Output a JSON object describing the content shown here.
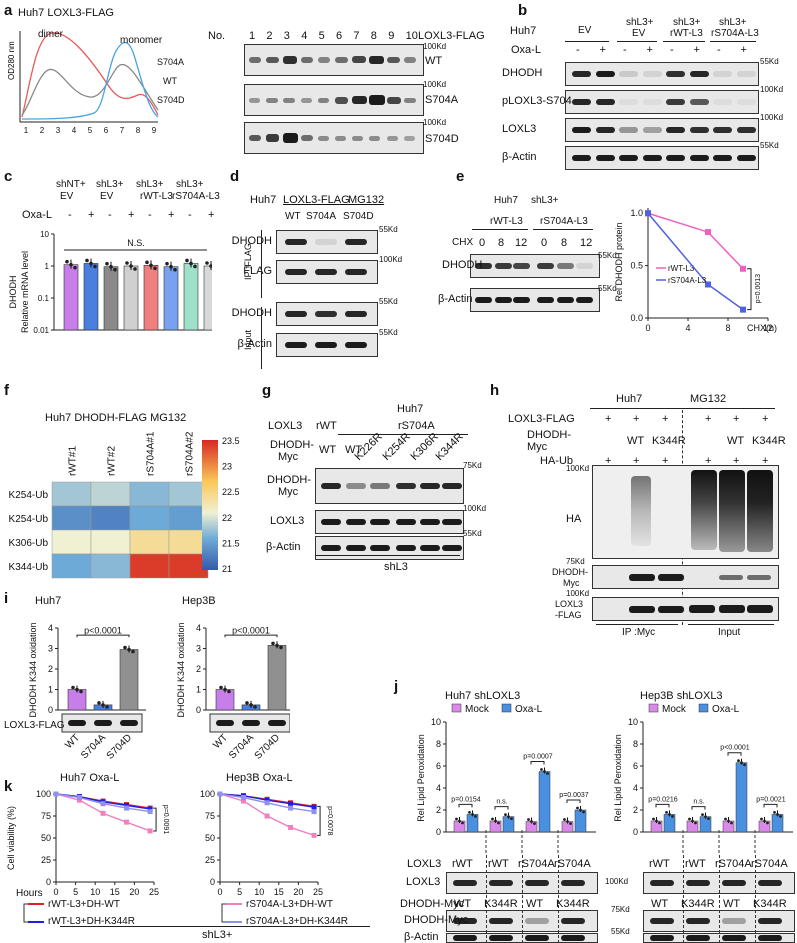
{
  "panel_labels": {
    "a": "a",
    "b": "b",
    "c": "c",
    "d": "d",
    "e": "e",
    "f": "f",
    "g": "g",
    "h": "h",
    "i": "i",
    "j": "j",
    "k": "k"
  },
  "a": {
    "title": "Huh7 LOXL3-FLAG",
    "dimer": "dimer",
    "monomer": "monomer",
    "ylabel": "OD280 nm",
    "series": [
      "S704A",
      "WT",
      "S704D"
    ],
    "colors": {
      "S704A": "#4aa3e0",
      "WT": "#8a8a8a",
      "S704D": "#e85a5a"
    },
    "xticks": [
      "1",
      "2",
      "3",
      "4",
      "5",
      "6",
      "7",
      "8",
      "9"
    ],
    "gel_no": "No.",
    "fractions": [
      "1",
      "2",
      "3",
      "4",
      "5",
      "6",
      "7",
      "8",
      "9",
      "10"
    ],
    "gel_header": "LOXL3-FLAG",
    "rows": [
      {
        "label": "WT",
        "kd": "100Kd"
      },
      {
        "label": "S704A",
        "kd": "100Kd"
      },
      {
        "label": "S704D",
        "kd": "100Kd"
      }
    ]
  },
  "b": {
    "huh7": "Huh7",
    "groups": [
      "EV",
      "shL3+\nEV",
      "shL3+\nrWT-L3",
      "shL3+\nrS704A-L3"
    ],
    "g1": "EV",
    "g2a": "shL3+",
    "g2b": "EV",
    "g3a": "shL3+",
    "g3b": "rWT-L3",
    "g4a": "shL3+",
    "g4b": "rS704A-L3",
    "oxa": "Oxa-L",
    "minus": "-",
    "plus": "+",
    "rows": [
      "DHODH",
      "pLOXL3-S704",
      "LOXL3",
      "β-Actin"
    ],
    "kds": [
      "55Kd",
      "100Kd",
      "100Kd",
      "55Kd"
    ]
  },
  "c": {
    "groups": [
      [
        "shNT+",
        "EV"
      ],
      [
        "shL3+",
        "EV"
      ],
      [
        "shL3+",
        "rWT-L3"
      ],
      [
        "shL3+",
        "rS704A-L3"
      ]
    ],
    "oxa": "Oxa-L",
    "minus": "-",
    "plus": "+",
    "ylabel1": "DHODH",
    "ylabel2": "Relative mRNA level",
    "ns": "N.S.",
    "yticks": [
      "0.01",
      "0.1",
      "1",
      "10"
    ],
    "chart_data": {
      "type": "bar",
      "categories": [
        "shNT+EV -",
        "shNT+EV +",
        "shL3+EV -",
        "shL3+EV +",
        "shL3+rWT-L3 -",
        "shL3+rWT-L3 +",
        "shL3+rS704A-L3 -",
        "shL3+rS704A-L3 +"
      ],
      "values": [
        1.1,
        1.2,
        0.95,
        1.0,
        1.05,
        0.95,
        1.2,
        1.0
      ],
      "ylim": [
        0.01,
        10
      ],
      "log": true,
      "colors": [
        "#c77ee8",
        "#4a7fe0",
        "#8a8a8a",
        "#d0d0d0",
        "#f08080",
        "#7aa0f0",
        "#9ee0c8",
        "#d8d8d8"
      ]
    }
  },
  "d": {
    "title1": "Huh7",
    "title2": "LOXL3-FLAG",
    "title3": "MG132",
    "lanes": [
      "WT",
      "S704A",
      "S704D"
    ],
    "ip": "IP :FLAG",
    "input": "Input",
    "rows": [
      "DHODH",
      "FLAG",
      "DHODH",
      "β-Actin"
    ],
    "kds": [
      "55Kd",
      "100Kd",
      "55Kd",
      "55Kd"
    ]
  },
  "e": {
    "huh7": "Huh7",
    "shl3": "shL3+",
    "g1": "rWT-L3",
    "g2": "rS704A-L3",
    "chx": "CHX",
    "times": [
      "0",
      "8",
      "12",
      "0",
      "8",
      "12"
    ],
    "rows": [
      "DHODH",
      "β-Actin"
    ],
    "kds": [
      "55Kd",
      "55Kd"
    ],
    "ylabel": "Rel DHODH protein",
    "xlabel": "CHX(h)",
    "pval": "p=0.0013",
    "yticks": [
      "0.0",
      "0.5",
      "1.0"
    ],
    "xticks": [
      "0",
      "4",
      "8",
      "12"
    ],
    "chart_data": {
      "type": "line",
      "x": [
        0,
        6,
        9.5
      ],
      "series": [
        {
          "name": "rWT-L3",
          "values": [
            1.0,
            0.82,
            0.47
          ],
          "color": "#f060c0"
        },
        {
          "name": "rS704A-L3",
          "values": [
            1.0,
            0.32,
            0.08
          ],
          "color": "#5060e0"
        }
      ],
      "xlim": [
        0,
        12
      ],
      "ylim": [
        0,
        1.05
      ]
    }
  },
  "f": {
    "title": "Huh7 DHODH-FLAG MG132",
    "cols": [
      "rWT#1",
      "rWT#2",
      "rS704A#1",
      "rS704A#2"
    ],
    "rows": [
      "K254-Ub",
      "K254-Ub",
      "K306-Ub",
      "K344-Ub"
    ],
    "scale": [
      "23.5",
      "23",
      "22.5",
      "22",
      "21.5",
      "21"
    ],
    "chart_data": {
      "type": "heatmap",
      "values": [
        [
          21.8,
          21.9,
          21.7,
          21.8
        ],
        [
          21.4,
          21.3,
          21.6,
          21.5
        ],
        [
          22.1,
          22.1,
          22.4,
          22.4
        ],
        [
          21.6,
          21.7,
          23.4,
          23.4
        ]
      ],
      "range": [
        21,
        23.5
      ]
    }
  },
  "g": {
    "huh7": "Huh7",
    "loxl3": "LOXL3",
    "rwt": "rWT",
    "rs704a": "rS704A",
    "dhodh_myc": "DHODH-\nMyc",
    "dm1": "DHODH-",
    "dm2": "Myc",
    "lanes": [
      "WT",
      "WT",
      "K226R",
      "K254R",
      "K306R",
      "K344R"
    ],
    "rows": [
      "DHODH-\nMyc",
      "LOXL3",
      "β-Actin"
    ],
    "kds": [
      "75Kd",
      "100Kd",
      "55Kd"
    ],
    "shl3": "shL3"
  },
  "h": {
    "huh7": "Huh7",
    "mg132": "MG132",
    "r1": "LOXL3-FLAG",
    "r2a": "DHODH-",
    "r2b": "Myc",
    "r3": "HA-Ub",
    "plus": "+",
    "wt": "WT",
    "k344r": "K344R",
    "kd1": "100Kd",
    "kd2": "75Kd",
    "kd3": "100Kd",
    "ha": "HA",
    "dm1": "DHODH-",
    "dm2": "Myc",
    "lx1": "LOXL3",
    "lx2": "-FLAG",
    "ip": "IP :Myc",
    "input": "Input"
  },
  "i": {
    "cell1": "Huh7",
    "cell2": "Hep3B",
    "ylabel": "DHODH K344 oxidation",
    "pval": "p<0.0001",
    "lanes": [
      "WT",
      "S704A",
      "S704D"
    ],
    "blot": "LOXL3-FLAG",
    "yticks": [
      "0",
      "1",
      "2",
      "3",
      "4"
    ],
    "chart_data": [
      {
        "type": "bar",
        "title": "Huh7",
        "categories": [
          "WT",
          "S704A",
          "S704D"
        ],
        "values": [
          1.0,
          0.25,
          2.95
        ],
        "ylim": [
          0,
          4
        ],
        "colors": [
          "#c77ee8",
          "#4a7fe0",
          "#909090"
        ]
      },
      {
        "type": "bar",
        "title": "Hep3B",
        "categories": [
          "WT",
          "S704A",
          "S704D"
        ],
        "values": [
          1.0,
          0.25,
          3.15
        ],
        "ylim": [
          0,
          4
        ],
        "colors": [
          "#c77ee8",
          "#4a7fe0",
          "#909090"
        ]
      }
    ]
  },
  "j": {
    "title1": "Huh7  shLOXL3",
    "title2": "Hep3B  shLOXL3",
    "legend": [
      "Mock",
      "Oxa-L"
    ],
    "legend_colors": [
      "#d98ae8",
      "#4a90e0"
    ],
    "ylabel": "Rel Lipid Peroxidation",
    "yticks": [
      "0",
      "2",
      "4",
      "6",
      "8",
      "10"
    ],
    "p1": [
      "p=0.0154",
      "n.s.",
      "p=0.0007",
      "p=0.0037"
    ],
    "p2": [
      "p=0.0216",
      "n.s.",
      "p<0.0001",
      "p=0.0021"
    ],
    "loxl3": "LOXL3",
    "l_lanes": [
      "rWT",
      "rWT",
      "rS704A",
      "rS704A"
    ],
    "dmyc": "DHODH-Myc",
    "d_lanes": [
      "WT",
      "K344R",
      "WT",
      "K344R"
    ],
    "rows": [
      "LOXL3",
      "DHODH-Myc",
      "β-Actin"
    ],
    "kds": [
      "100Kd",
      "75Kd",
      "55Kd"
    ],
    "chart_data": [
      {
        "type": "bar",
        "title": "Huh7  shLOXL3",
        "categories": [
          "rWT/WT",
          "rWT/K344R",
          "rS704A/WT",
          "rS704A/K344R"
        ],
        "series": [
          {
            "name": "Mock",
            "values": [
              1.0,
              1.0,
              0.95,
              0.95
            ]
          },
          {
            "name": "Oxa-L",
            "values": [
              1.6,
              1.4,
              5.5,
              2.0
            ]
          }
        ],
        "ylim": [
          0,
          10
        ]
      },
      {
        "type": "bar",
        "title": "Hep3B  shLOXL3",
        "categories": [
          "rWT/WT",
          "rWT/K344R",
          "rS704A/WT",
          "rS704A/K344R"
        ],
        "series": [
          {
            "name": "Mock",
            "values": [
              1.0,
              1.0,
              1.0,
              1.0
            ]
          },
          {
            "name": "Oxa-L",
            "values": [
              1.6,
              1.4,
              6.3,
              1.6
            ]
          }
        ],
        "ylim": [
          0,
          10
        ]
      }
    ]
  },
  "k": {
    "title1": "Huh7  Oxa-L",
    "title2": "Hep3B  Oxa-L",
    "ylabel": "Cell viability (%)",
    "xlabel": "Hours",
    "yticks": [
      "0",
      "25",
      "50",
      "75",
      "100"
    ],
    "xticks": [
      "0",
      "5",
      "10",
      "15",
      "20",
      "25"
    ],
    "p1": "p=0.0091",
    "p2": "p=0.0078",
    "legend": [
      "rWT-L3+DH-WT",
      "rWT-L3+DH-K344R",
      "rS704A-L3+DH-WT",
      "rS704A-L3+DH-K344R"
    ],
    "legend_colors": [
      "#e02020",
      "#2020e0",
      "#f080c0",
      "#9090f0"
    ],
    "shl3": "shL3+",
    "chart_data": [
      {
        "type": "line",
        "title": "Huh7  Oxa-L",
        "x": [
          0,
          6,
          12,
          18,
          24
        ],
        "xlim": [
          0,
          25
        ],
        "ylim": [
          0,
          100
        ],
        "series": [
          {
            "name": "rWT-L3+DH-WT",
            "values": [
              100,
              97,
              92,
              88,
              84
            ]
          },
          {
            "name": "rWT-L3+DH-K344R",
            "values": [
              100,
              97,
              91,
              87,
              83
            ]
          },
          {
            "name": "rS704A-L3+DH-WT",
            "values": [
              100,
              93,
              78,
              68,
              58
            ]
          },
          {
            "name": "rS704A-L3+DH-K344R",
            "values": [
              100,
              96,
              89,
              84,
              80
            ]
          }
        ]
      },
      {
        "type": "line",
        "title": "Hep3B  Oxa-L",
        "x": [
          0,
          6,
          12,
          18,
          24
        ],
        "xlim": [
          0,
          25
        ],
        "ylim": [
          0,
          100
        ],
        "series": [
          {
            "name": "rWT-L3+DH-WT",
            "values": [
              100,
              98,
              94,
              90,
              86
            ]
          },
          {
            "name": "rWT-L3+DH-K344R",
            "values": [
              100,
              98,
              93,
              89,
              85
            ]
          },
          {
            "name": "rS704A-L3+DH-WT",
            "values": [
              100,
              92,
              75,
              62,
              53
            ]
          },
          {
            "name": "rS704A-L3+DH-K344R",
            "values": [
              100,
              96,
              90,
              84,
              80
            ]
          }
        ]
      }
    ]
  }
}
